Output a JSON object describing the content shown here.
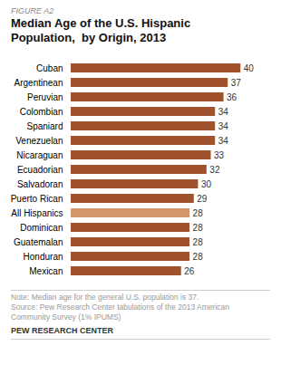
{
  "chart_data": {
    "type": "bar",
    "orientation": "horizontal",
    "title": "Median Age of the U.S. Hispanic\nPopulation,  by Origin, 2013",
    "annotations": [
      "FIGURE A2",
      "Note: Median age for the general U.S. population is 37.",
      "Source: Pew Research Center tabulations of the 2013 American",
      "Community Survey (1% IPUMS)",
      "PEW RESEARCH CENTER"
    ],
    "categories": [
      "Cuban",
      "Argentinean",
      "Peruvian",
      "Colombian",
      "Spaniard",
      "Venezuelan",
      "Nicaraguan",
      "Ecuadorian",
      "Salvadoran",
      "Puerto Rican",
      "All Hispanics",
      "Dominican",
      "Guatemalan",
      "Honduran",
      "Mexican"
    ],
    "values": [
      40,
      37,
      36,
      34,
      34,
      34,
      33,
      32,
      30,
      29,
      28,
      28,
      28,
      28,
      26
    ],
    "colors": [
      "#A0522D",
      "#A0522D",
      "#A0522D",
      "#A0522D",
      "#A0522D",
      "#A0522D",
      "#A0522D",
      "#A0522D",
      "#A0522D",
      "#A0522D",
      "#D4956A",
      "#A0522D",
      "#A0522D",
      "#A0522D",
      "#A0522D"
    ],
    "xlim": [
      0,
      44
    ],
    "data_labels": true,
    "tick_labels": "y",
    "grid": false
  }
}
